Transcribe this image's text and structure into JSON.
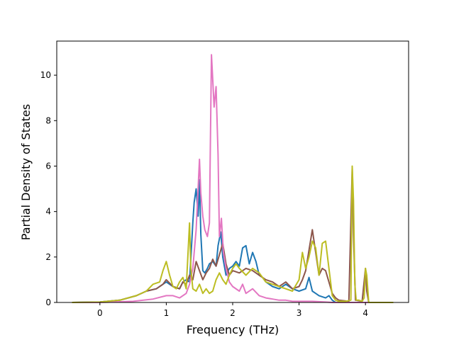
{
  "chart_data": {
    "type": "line",
    "title": "",
    "xlabel": "Frequency (THz)",
    "ylabel": "Partial Density of States",
    "xlim": [
      -0.65,
      4.65
    ],
    "ylim": [
      0,
      11.5
    ],
    "xticks": [
      0,
      1,
      2,
      3,
      4
    ],
    "yticks": [
      0,
      2,
      4,
      6,
      8,
      10
    ],
    "grid": false,
    "legend": "none",
    "series": [
      {
        "color": "#1f77b4",
        "x": [
          -0.42,
          0.0,
          0.3,
          0.55,
          0.7,
          0.85,
          0.95,
          1.0,
          1.1,
          1.2,
          1.25,
          1.3,
          1.35,
          1.4,
          1.42,
          1.45,
          1.48,
          1.5,
          1.52,
          1.55,
          1.58,
          1.62,
          1.65,
          1.7,
          1.75,
          1.78,
          1.82,
          1.85,
          1.9,
          1.95,
          2.0,
          2.05,
          2.1,
          2.15,
          2.2,
          2.25,
          2.3,
          2.35,
          2.4,
          2.45,
          2.5,
          2.6,
          2.7,
          2.8,
          2.9,
          3.0,
          3.1,
          3.15,
          3.2,
          3.25,
          3.3,
          3.4,
          3.45,
          3.5,
          3.55,
          4.42
        ],
        "y": [
          0.0,
          0.02,
          0.1,
          0.3,
          0.5,
          0.6,
          0.8,
          0.9,
          0.7,
          0.6,
          0.9,
          1.0,
          0.9,
          3.5,
          4.4,
          5.0,
          3.8,
          5.4,
          3.0,
          1.4,
          1.3,
          1.5,
          1.7,
          1.8,
          1.6,
          2.5,
          3.1,
          2.0,
          1.2,
          1.5,
          1.6,
          1.8,
          1.6,
          2.4,
          2.5,
          1.7,
          2.2,
          1.8,
          1.2,
          1.1,
          0.9,
          0.7,
          0.6,
          0.8,
          0.6,
          0.5,
          0.6,
          1.1,
          0.5,
          0.4,
          0.3,
          0.2,
          0.3,
          0.1,
          0.0,
          0.0
        ]
      },
      {
        "color": "#8c564b",
        "x": [
          -0.42,
          0.0,
          0.3,
          0.55,
          0.7,
          0.85,
          0.95,
          1.0,
          1.1,
          1.2,
          1.25,
          1.3,
          1.35,
          1.4,
          1.45,
          1.5,
          1.55,
          1.6,
          1.65,
          1.7,
          1.75,
          1.8,
          1.85,
          1.9,
          1.95,
          2.0,
          2.1,
          2.2,
          2.3,
          2.4,
          2.5,
          2.6,
          2.7,
          2.8,
          2.9,
          3.0,
          3.05,
          3.1,
          3.15,
          3.2,
          3.25,
          3.3,
          3.35,
          3.4,
          3.45,
          3.5,
          3.55,
          3.6,
          3.75,
          3.8,
          3.82,
          3.85,
          3.95,
          4.0,
          4.02,
          4.05,
          4.42
        ],
        "y": [
          0.0,
          0.02,
          0.1,
          0.3,
          0.5,
          0.6,
          0.8,
          1.0,
          0.7,
          0.6,
          0.9,
          0.8,
          1.2,
          1.0,
          1.8,
          1.4,
          1.0,
          1.3,
          1.5,
          1.9,
          1.6,
          2.1,
          2.6,
          1.7,
          1.2,
          1.4,
          1.3,
          1.5,
          1.4,
          1.2,
          1.0,
          0.9,
          0.7,
          0.9,
          0.6,
          0.7,
          1.0,
          1.4,
          2.3,
          3.2,
          2.2,
          1.2,
          1.5,
          1.4,
          0.9,
          0.4,
          0.2,
          0.1,
          0.05,
          5.9,
          3.0,
          0.1,
          0.05,
          1.5,
          0.5,
          0.0,
          0.0
        ]
      },
      {
        "color": "#e377c2",
        "x": [
          -0.42,
          0.0,
          0.5,
          0.8,
          1.0,
          1.1,
          1.2,
          1.3,
          1.35,
          1.4,
          1.45,
          1.5,
          1.52,
          1.55,
          1.58,
          1.62,
          1.65,
          1.68,
          1.7,
          1.72,
          1.75,
          1.78,
          1.8,
          1.83,
          1.86,
          1.9,
          1.95,
          2.0,
          2.1,
          2.15,
          2.2,
          2.3,
          2.4,
          2.5,
          2.6,
          2.7,
          2.8,
          2.9,
          3.0,
          3.2,
          3.4,
          3.5,
          4.42
        ],
        "y": [
          0.0,
          0.0,
          0.05,
          0.15,
          0.3,
          0.3,
          0.2,
          0.4,
          0.8,
          1.5,
          3.2,
          6.3,
          4.8,
          3.8,
          3.2,
          2.9,
          3.5,
          10.9,
          9.8,
          8.6,
          9.5,
          6.5,
          2.9,
          3.7,
          2.2,
          1.5,
          0.9,
          0.7,
          0.5,
          0.8,
          0.4,
          0.6,
          0.3,
          0.2,
          0.15,
          0.1,
          0.1,
          0.05,
          0.05,
          0.05,
          0.02,
          0.0,
          0.0
        ]
      },
      {
        "color": "#bcbd22",
        "x": [
          -0.42,
          0.0,
          0.3,
          0.55,
          0.7,
          0.8,
          0.9,
          0.95,
          1.0,
          1.05,
          1.1,
          1.15,
          1.2,
          1.25,
          1.3,
          1.35,
          1.37,
          1.4,
          1.45,
          1.5,
          1.55,
          1.6,
          1.65,
          1.7,
          1.75,
          1.8,
          1.85,
          1.9,
          1.95,
          2.0,
          2.05,
          2.1,
          2.2,
          2.3,
          2.4,
          2.5,
          2.6,
          2.7,
          2.8,
          2.9,
          3.0,
          3.05,
          3.1,
          3.15,
          3.2,
          3.25,
          3.3,
          3.35,
          3.4,
          3.45,
          3.5,
          3.55,
          3.6,
          3.7,
          3.78,
          3.8,
          3.82,
          3.84,
          3.86,
          3.9,
          3.95,
          3.98,
          4.0,
          4.02,
          4.05,
          4.42
        ],
        "y": [
          0.0,
          0.02,
          0.1,
          0.3,
          0.5,
          0.8,
          0.9,
          1.4,
          1.8,
          1.2,
          0.7,
          0.6,
          0.9,
          1.1,
          0.6,
          3.5,
          1.5,
          0.6,
          0.5,
          0.8,
          0.4,
          0.6,
          0.4,
          0.5,
          1.0,
          1.3,
          1.0,
          0.8,
          1.2,
          1.5,
          1.7,
          1.5,
          1.2,
          1.5,
          1.3,
          0.9,
          0.8,
          0.7,
          0.6,
          0.5,
          1.0,
          2.2,
          1.5,
          2.0,
          2.7,
          2.4,
          1.2,
          2.6,
          2.7,
          1.5,
          0.3,
          0.1,
          0.05,
          0.05,
          0.1,
          6.0,
          4.5,
          0.8,
          0.1,
          0.1,
          0.05,
          0.2,
          1.5,
          1.2,
          0.0,
          0.0
        ]
      }
    ]
  }
}
